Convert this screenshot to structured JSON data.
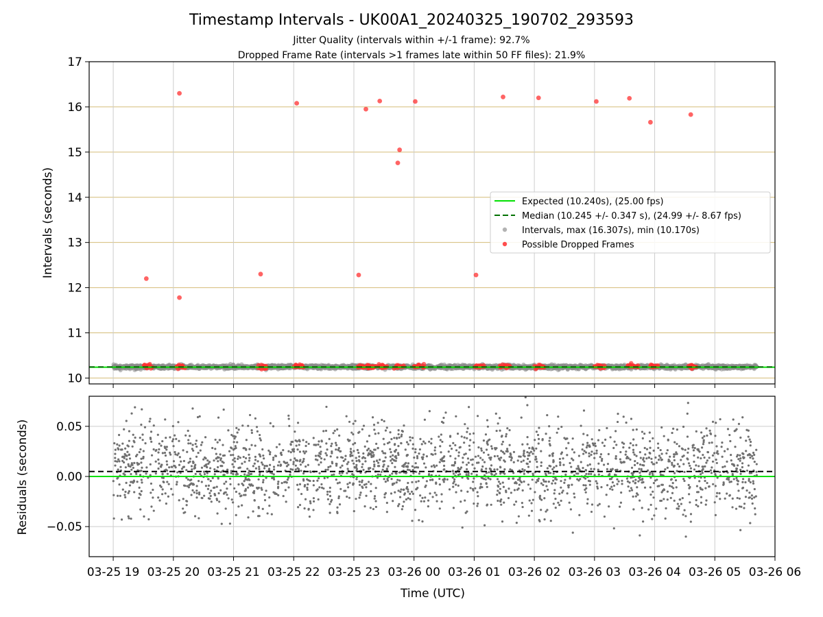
{
  "chart_data": [
    {
      "type": "scatter",
      "title": "Timestamp Intervals - UK00A1_20240325_190702_293593",
      "subtitle_lines": [
        "Jitter Quality (intervals within +/-1 frame): 92.7%",
        "Dropped Frame Rate (intervals >1 frames late within 50 FF files): 21.9%"
      ],
      "xlabel": "",
      "ylabel": "Intervals (seconds)",
      "ylim": [
        9.87,
        17.0
      ],
      "yticks": [
        10,
        11,
        12,
        13,
        14,
        15,
        16,
        17
      ],
      "y_gridlines_color": "#d4bc77",
      "x_gridlines_color": "#cccccc",
      "xlim_hours": [
        18.6,
        30.0
      ],
      "legend": {
        "placement": "center-right",
        "entries": [
          {
            "label": "Expected (10.240s), (25.00 fps)",
            "style": "solid-line",
            "color": "#00e000"
          },
          {
            "label": "Median (10.245 +/- 0.347 s), (24.99 +/- 8.67 fps)",
            "style": "dashed-line",
            "color": "#007000"
          },
          {
            "label": "Intervals, max (16.307s), min (10.170s)",
            "style": "marker",
            "color": "#a0a0a0"
          },
          {
            "label": "Possible Dropped Frames",
            "style": "marker",
            "color": "#ff2020"
          }
        ]
      },
      "expected": 10.24,
      "median": 10.245,
      "intervals_range": [
        19.0,
        29.7
      ],
      "series": [
        {
          "name": "Possible Dropped Frames",
          "color": "#ff3030",
          "points": [
            {
              "x": 19.55,
              "y": 12.2
            },
            {
              "x": 20.1,
              "y": 16.3
            },
            {
              "x": 20.1,
              "y": 11.78
            },
            {
              "x": 21.45,
              "y": 12.3
            },
            {
              "x": 22.05,
              "y": 16.08
            },
            {
              "x": 23.08,
              "y": 12.28
            },
            {
              "x": 23.2,
              "y": 15.95
            },
            {
              "x": 23.43,
              "y": 16.13
            },
            {
              "x": 23.73,
              "y": 14.76
            },
            {
              "x": 23.76,
              "y": 15.05
            },
            {
              "x": 24.02,
              "y": 16.12
            },
            {
              "x": 25.03,
              "y": 12.28
            },
            {
              "x": 25.48,
              "y": 16.22
            },
            {
              "x": 26.07,
              "y": 16.2
            },
            {
              "x": 27.03,
              "y": 16.12
            },
            {
              "x": 27.58,
              "y": 16.19
            },
            {
              "x": 27.93,
              "y": 15.66
            },
            {
              "x": 28.6,
              "y": 15.83
            }
          ],
          "clusters_at_y": 10.255,
          "cluster_x": [
            19.55,
            19.6,
            20.1,
            20.15,
            21.45,
            21.5,
            22.05,
            22.12,
            23.1,
            23.2,
            23.25,
            23.32,
            23.45,
            23.5,
            23.7,
            23.78,
            24.05,
            24.12,
            25.05,
            25.12,
            25.48,
            25.55,
            26.05,
            26.12,
            27.05,
            27.12,
            27.6,
            27.68,
            27.95,
            28.02,
            28.6,
            28.65
          ]
        }
      ]
    },
    {
      "type": "scatter",
      "title": "",
      "xlabel": "Time (UTC)",
      "ylabel": "Residuals (seconds)",
      "ylim": [
        -0.08,
        0.08
      ],
      "yticks": [
        -0.05,
        0.0,
        0.05
      ],
      "ytick_labels": [
        "−0.05",
        "0.00",
        "0.05"
      ],
      "expected_residual": 0.0,
      "median_residual": 0.005,
      "residual_range": [
        -0.072,
        0.079
      ],
      "xticks": [
        19,
        20,
        21,
        22,
        23,
        24,
        25,
        26,
        27,
        28,
        29,
        30
      ],
      "xtick_labels": [
        "03-25 19",
        "03-25 20",
        "03-25 21",
        "03-25 22",
        "03-25 23",
        "03-26 00",
        "03-26 01",
        "03-26 02",
        "03-26 03",
        "03-26 04",
        "03-26 05",
        "03-26 06"
      ],
      "series": [
        {
          "name": "Residuals",
          "color": "#707070"
        }
      ]
    }
  ]
}
